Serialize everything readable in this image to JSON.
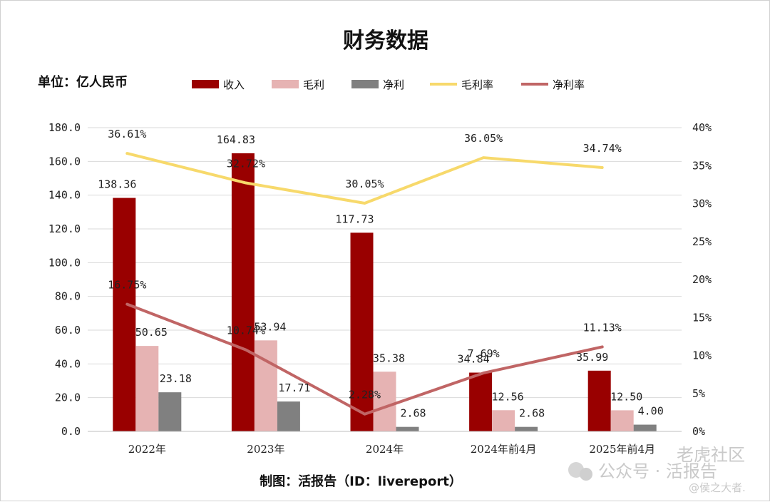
{
  "chart_data": {
    "type": "bar",
    "title": "财务数据",
    "unit_label": "单位：亿人民币",
    "categories": [
      "2022年",
      "2023年",
      "2024年",
      "2024年前4月",
      "2025年前4月"
    ],
    "bar_series": [
      {
        "name": "收入",
        "color": "#990000",
        "values": [
          138.36,
          164.83,
          117.73,
          34.84,
          35.99
        ],
        "labels": [
          "138.36",
          "164.83",
          "117.73",
          "34.84",
          "35.99"
        ]
      },
      {
        "name": "毛利",
        "color": "#e6b3b3",
        "values": [
          50.65,
          53.94,
          35.38,
          12.56,
          12.5
        ],
        "labels": [
          "50.65",
          "53.94",
          "35.38",
          "12.56",
          "12.50"
        ]
      },
      {
        "name": "净利",
        "color": "#808080",
        "values": [
          23.18,
          17.71,
          2.68,
          2.68,
          4.0
        ],
        "labels": [
          "23.18",
          "17.71",
          "2.68",
          "2.68",
          "4.00"
        ]
      }
    ],
    "line_series": [
      {
        "name": "毛利率",
        "color": "#f7d96b",
        "values": [
          36.61,
          32.72,
          30.05,
          36.05,
          34.74
        ],
        "labels": [
          "36.61%",
          "32.72%",
          "30.05%",
          "36.05%",
          "34.74%"
        ]
      },
      {
        "name": "净利率",
        "color": "#c06565",
        "values": [
          16.75,
          10.74,
          2.28,
          7.69,
          11.13
        ],
        "labels": [
          "16.75%",
          "10.74%",
          "2.28%",
          "7.69%",
          "11.13%"
        ]
      }
    ],
    "y_left": {
      "min": 0,
      "max": 180,
      "step": 20,
      "tick_labels": [
        "0.0",
        "20.0",
        "40.0",
        "60.0",
        "80.0",
        "100.0",
        "120.0",
        "140.0",
        "160.0",
        "180.0"
      ]
    },
    "y_right": {
      "min": 0,
      "max": 40,
      "step": 5,
      "tick_labels": [
        "0%",
        "5%",
        "10%",
        "15%",
        "20%",
        "25%",
        "30%",
        "35%",
        "40%"
      ]
    },
    "grid": true,
    "legend_position": "top"
  },
  "footer": "制图：活报告（ID：livereport）",
  "watermark": {
    "line1": "老虎社区",
    "line2": "公众号 · 活报告",
    "line3": "@侯之大者."
  }
}
